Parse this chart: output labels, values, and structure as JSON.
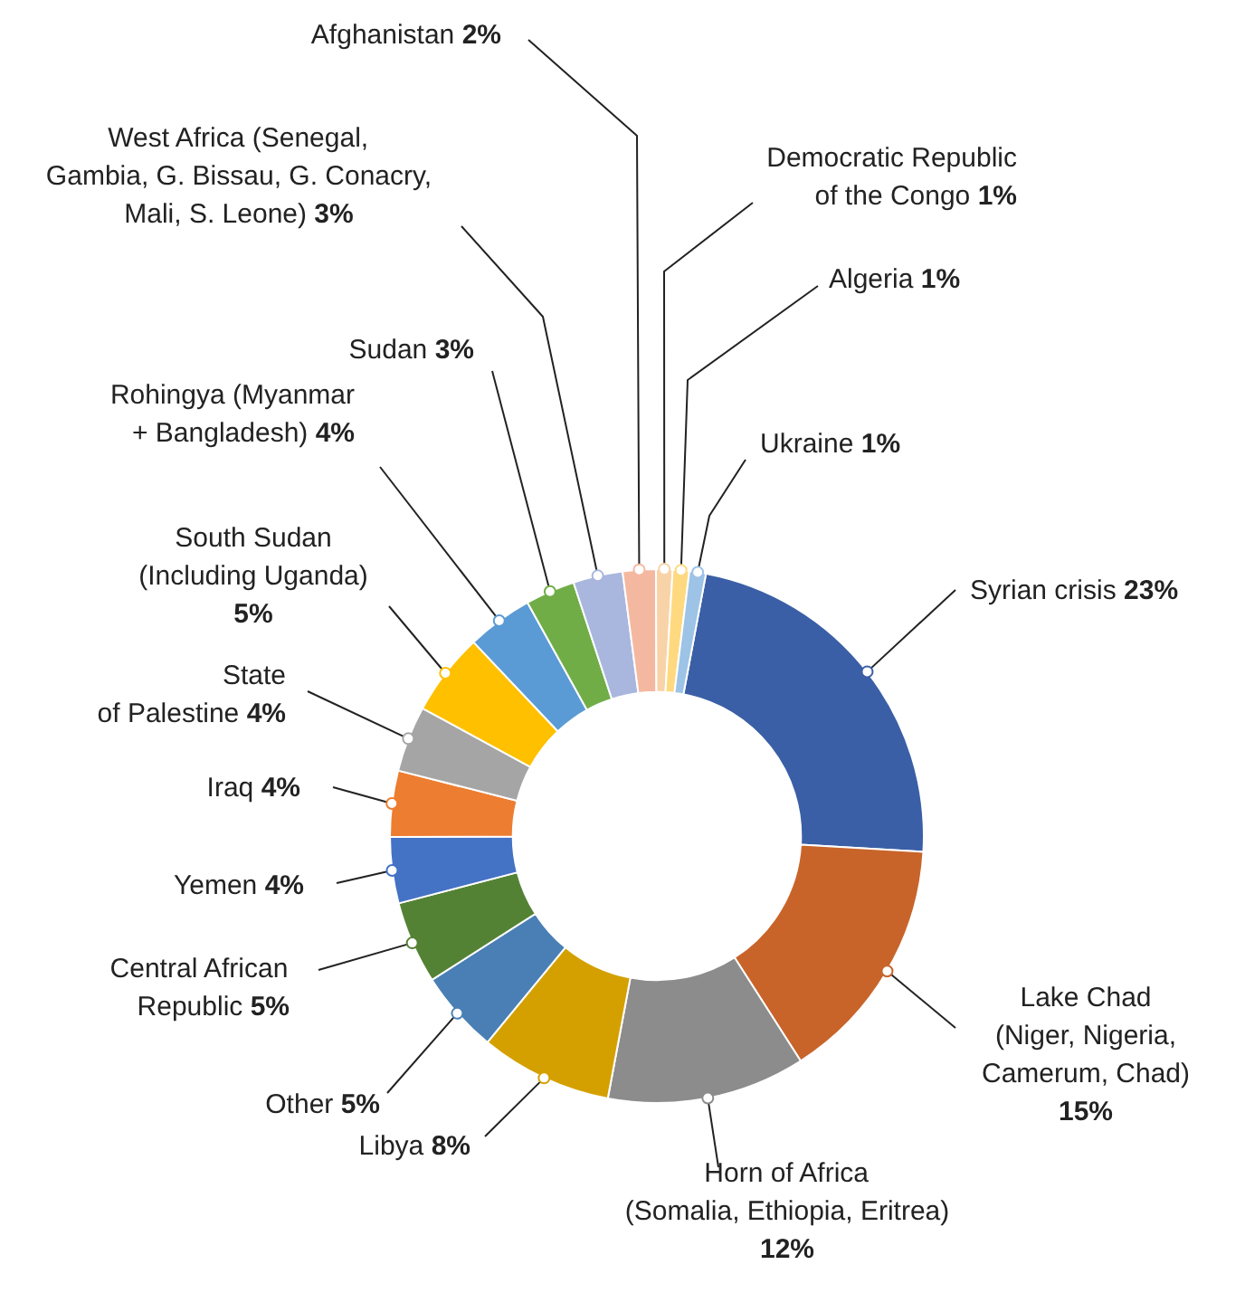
{
  "chart_data": {
    "type": "donut",
    "categories": [
      "Syrian crisis",
      "Lake Chad (Niger, Nigeria, Camerum, Chad)",
      "Horn of Africa (Somalia, Ethiopia, Eritrea)",
      "Libya",
      "Other",
      "Central African Republic",
      "Yemen",
      "Iraq",
      "State of Palestine",
      "South Sudan (Including Uganda)",
      "Rohingya (Myanmar + Bangladesh)",
      "Sudan",
      "West Africa (Senegal, Gambia, G. Bissau, G. Conacry, Mali, S. Leone)",
      "Afghanistan",
      "Democratic Republic of the Congo",
      "Algeria",
      "Ukraine"
    ],
    "values": [
      23,
      15,
      12,
      8,
      5,
      5,
      4,
      4,
      4,
      5,
      4,
      3,
      3,
      2,
      1,
      1,
      1
    ],
    "colors": [
      "#3a5fa6",
      "#c8642a",
      "#8c8c8c",
      "#d4a000",
      "#4a7fb5",
      "#548235",
      "#4472c4",
      "#ed7d31",
      "#a5a5a5",
      "#ffc000",
      "#5b9bd5",
      "#70ad47",
      "#a9b6de",
      "#f4b8a0",
      "#f8d3a8",
      "#ffd980",
      "#9dc3e6"
    ],
    "value_labels": [
      "23%",
      "15%",
      "12%",
      "8%",
      "5%",
      "5%",
      "4%",
      "4%",
      "4%",
      "5%",
      "4%",
      "3%",
      "3%",
      "2%",
      "1%",
      "1%",
      "1%"
    ]
  }
}
